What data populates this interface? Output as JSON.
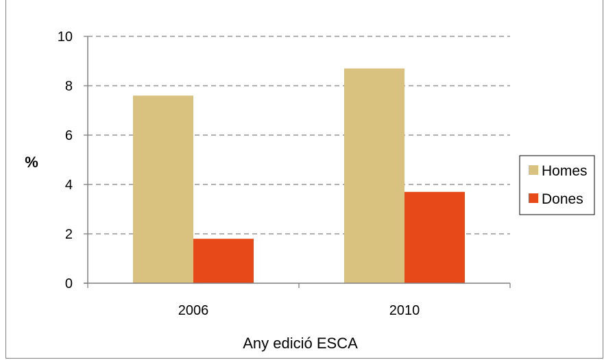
{
  "chart_data": {
    "type": "bar",
    "categories": [
      "2006",
      "2010"
    ],
    "series": [
      {
        "name": "Homes",
        "values": [
          7.6,
          8.7
        ],
        "color": "#d9c280"
      },
      {
        "name": "Dones",
        "values": [
          1.8,
          3.7
        ],
        "color": "#e84919"
      }
    ],
    "title": "",
    "xlabel": "Any edició ESCA",
    "ylabel": "%",
    "ylim": [
      0,
      10
    ],
    "yticks": [
      "0",
      "2",
      "4",
      "6",
      "8",
      "10"
    ],
    "grid": true,
    "legend_position": "right"
  }
}
